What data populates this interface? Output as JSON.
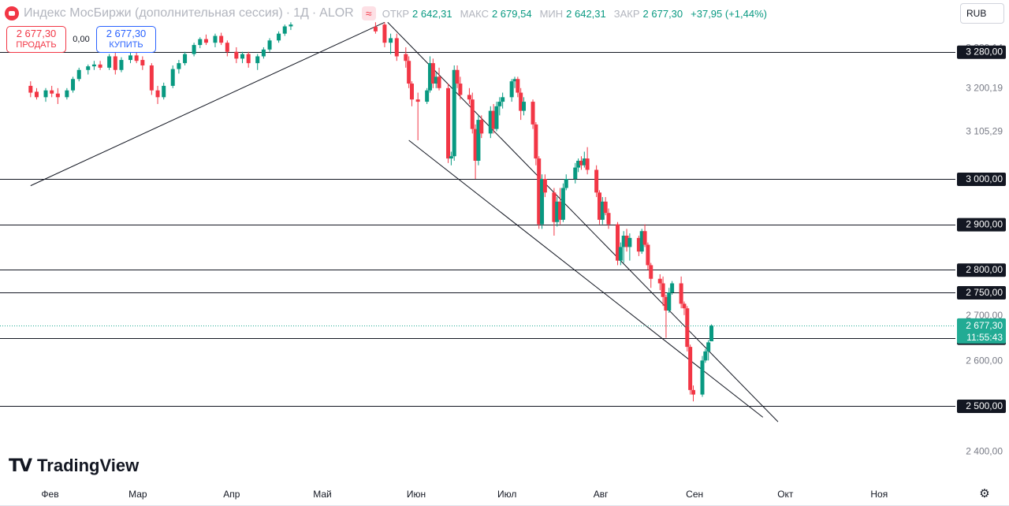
{
  "header": {
    "title": "Индекс МосБиржи (дополнительная сессия)",
    "interval": "1Д",
    "broker": "ALOR",
    "open_label": "ОТКР",
    "open": "2 642,31",
    "high_label": "МАКС",
    "high": "2 679,54",
    "low_label": "МИН",
    "low": "2 642,31",
    "close_label": "ЗАКР",
    "close": "2 677,30",
    "change": "+37,95 (+1,44%)"
  },
  "trade": {
    "sell_price": "2 677,30",
    "sell_label": "ПРОДАТЬ",
    "spread": "0,00",
    "buy_price": "2 677,30",
    "buy_label": "КУПИТЬ"
  },
  "currency": "RUB",
  "brand": {
    "mark": "TV",
    "name": "TradingView"
  },
  "colors": {
    "up": "#089981",
    "down": "#f23645",
    "line": "#131722",
    "price_tag": "#22ab94"
  },
  "chart_data": {
    "type": "candlestick",
    "y_axis": {
      "ticks": [
        2400,
        2600,
        2700,
        3105.29,
        3200.19,
        3289.14
      ],
      "tick_labels": [
        "2 400,00",
        "2 600,00",
        "2 700,00",
        "3 105,29",
        "3 200,19",
        "3 289,14"
      ]
    },
    "x_axis": {
      "labels": [
        "Фев",
        "Мар",
        "Апр",
        "Май",
        "Июн",
        "Июл",
        "Авг",
        "Сен",
        "Окт",
        "Ноя"
      ]
    },
    "horizontal_levels": [
      3280,
      3000,
      2900,
      2800,
      2750,
      2650,
      2500
    ],
    "horizontal_level_labels": [
      "3 280,00",
      "3 000,00",
      "2 900,00",
      "2 800,00",
      "2 750,00",
      "2 650,00",
      "2 500,00"
    ],
    "current_price": {
      "value": 2677.3,
      "label": "2 677,30",
      "countdown": "11:55:43"
    },
    "trendlines": [
      {
        "name": "rising-support",
        "from": [
          "2024-01-24",
          2985
        ],
        "to": [
          "2024-05-20",
          3345
        ]
      },
      {
        "name": "channel-upper",
        "from": [
          "2024-05-21",
          3345
        ],
        "to": [
          "2024-09-27",
          2465
        ]
      },
      {
        "name": "channel-lower",
        "from": [
          "2024-05-28",
          3085
        ],
        "to": [
          "2024-09-22",
          2475
        ]
      }
    ],
    "candles": [
      {
        "d": "2024-01-24",
        "o": 3205,
        "h": 3215,
        "l": 3180,
        "c": 3190
      },
      {
        "d": "2024-01-26",
        "o": 3192,
        "h": 3200,
        "l": 3175,
        "c": 3180
      },
      {
        "d": "2024-01-29",
        "o": 3180,
        "h": 3200,
        "l": 3170,
        "c": 3195
      },
      {
        "d": "2024-01-31",
        "o": 3195,
        "h": 3205,
        "l": 3180,
        "c": 3188
      },
      {
        "d": "2024-02-02",
        "o": 3188,
        "h": 3200,
        "l": 3165,
        "c": 3180
      },
      {
        "d": "2024-02-05",
        "o": 3180,
        "h": 3200,
        "l": 3175,
        "c": 3195
      },
      {
        "d": "2024-02-07",
        "o": 3195,
        "h": 3225,
        "l": 3190,
        "c": 3220
      },
      {
        "d": "2024-02-09",
        "o": 3220,
        "h": 3245,
        "l": 3215,
        "c": 3240
      },
      {
        "d": "2024-02-12",
        "o": 3240,
        "h": 3252,
        "l": 3230,
        "c": 3248
      },
      {
        "d": "2024-02-14",
        "o": 3248,
        "h": 3260,
        "l": 3240,
        "c": 3252
      },
      {
        "d": "2024-02-16",
        "o": 3252,
        "h": 3260,
        "l": 3240,
        "c": 3245
      },
      {
        "d": "2024-02-19",
        "o": 3245,
        "h": 3275,
        "l": 3240,
        "c": 3270
      },
      {
        "d": "2024-02-21",
        "o": 3270,
        "h": 3280,
        "l": 3230,
        "c": 3240
      },
      {
        "d": "2024-02-23",
        "o": 3240,
        "h": 3268,
        "l": 3235,
        "c": 3262
      },
      {
        "d": "2024-02-26",
        "o": 3262,
        "h": 3278,
        "l": 3255,
        "c": 3272
      },
      {
        "d": "2024-02-28",
        "o": 3272,
        "h": 3282,
        "l": 3255,
        "c": 3260
      },
      {
        "d": "2024-03-01",
        "o": 3262,
        "h": 3270,
        "l": 3240,
        "c": 3250
      },
      {
        "d": "2024-03-04",
        "o": 3250,
        "h": 3255,
        "l": 3185,
        "c": 3195
      },
      {
        "d": "2024-03-06",
        "o": 3195,
        "h": 3205,
        "l": 3165,
        "c": 3180
      },
      {
        "d": "2024-03-08",
        "o": 3180,
        "h": 3212,
        "l": 3175,
        "c": 3205
      },
      {
        "d": "2024-03-11",
        "o": 3205,
        "h": 3250,
        "l": 3200,
        "c": 3242
      },
      {
        "d": "2024-03-13",
        "o": 3242,
        "h": 3262,
        "l": 3232,
        "c": 3255
      },
      {
        "d": "2024-03-15",
        "o": 3255,
        "h": 3280,
        "l": 3250,
        "c": 3275
      },
      {
        "d": "2024-03-18",
        "o": 3275,
        "h": 3300,
        "l": 3270,
        "c": 3295
      },
      {
        "d": "2024-03-20",
        "o": 3295,
        "h": 3312,
        "l": 3288,
        "c": 3308
      },
      {
        "d": "2024-03-22",
        "o": 3308,
        "h": 3318,
        "l": 3295,
        "c": 3300
      },
      {
        "d": "2024-03-25",
        "o": 3300,
        "h": 3320,
        "l": 3290,
        "c": 3315
      },
      {
        "d": "2024-03-27",
        "o": 3315,
        "h": 3322,
        "l": 3295,
        "c": 3300
      },
      {
        "d": "2024-03-29",
        "o": 3300,
        "h": 3305,
        "l": 3270,
        "c": 3280
      },
      {
        "d": "2024-04-01",
        "o": 3280,
        "h": 3290,
        "l": 3255,
        "c": 3265
      },
      {
        "d": "2024-04-03",
        "o": 3265,
        "h": 3280,
        "l": 3255,
        "c": 3275
      },
      {
        "d": "2024-04-05",
        "o": 3275,
        "h": 3280,
        "l": 3245,
        "c": 3255
      },
      {
        "d": "2024-04-08",
        "o": 3255,
        "h": 3275,
        "l": 3240,
        "c": 3270
      },
      {
        "d": "2024-04-10",
        "o": 3270,
        "h": 3290,
        "l": 3265,
        "c": 3285
      },
      {
        "d": "2024-04-12",
        "o": 3285,
        "h": 3310,
        "l": 3280,
        "c": 3305
      },
      {
        "d": "2024-04-15",
        "o": 3305,
        "h": 3325,
        "l": 3300,
        "c": 3320
      },
      {
        "d": "2024-04-17",
        "o": 3320,
        "h": 3340,
        "l": 3315,
        "c": 3336
      },
      {
        "d": "2024-04-19",
        "o": 3336,
        "h": 3345,
        "l": 3328,
        "c": 3340
      },
      {
        "d": "2024-05-17",
        "o": 3335,
        "h": 3345,
        "l": 3320,
        "c": 3325
      },
      {
        "d": "2024-05-20",
        "o": 3340,
        "h": 3345,
        "l": 3290,
        "c": 3300
      },
      {
        "d": "2024-05-22",
        "o": 3300,
        "h": 3320,
        "l": 3275,
        "c": 3310
      },
      {
        "d": "2024-05-24",
        "o": 3310,
        "h": 3320,
        "l": 3260,
        "c": 3270
      },
      {
        "d": "2024-05-27",
        "o": 3275,
        "h": 3290,
        "l": 3245,
        "c": 3260
      },
      {
        "d": "2024-05-28",
        "o": 3260,
        "h": 3270,
        "l": 3200,
        "c": 3210
      },
      {
        "d": "2024-05-29",
        "o": 3210,
        "h": 3215,
        "l": 3160,
        "c": 3175
      },
      {
        "d": "2024-05-31",
        "o": 3175,
        "h": 3190,
        "l": 3085,
        "c": 3170
      },
      {
        "d": "2024-06-03",
        "o": 3170,
        "h": 3200,
        "l": 3165,
        "c": 3195
      },
      {
        "d": "2024-06-04",
        "o": 3195,
        "h": 3270,
        "l": 3190,
        "c": 3255
      },
      {
        "d": "2024-06-05",
        "o": 3255,
        "h": 3265,
        "l": 3200,
        "c": 3210
      },
      {
        "d": "2024-06-06",
        "o": 3210,
        "h": 3235,
        "l": 3200,
        "c": 3225
      },
      {
        "d": "2024-06-07",
        "o": 3225,
        "h": 3245,
        "l": 3195,
        "c": 3200
      },
      {
        "d": "2024-06-10",
        "o": 3200,
        "h": 3210,
        "l": 3035,
        "c": 3045
      },
      {
        "d": "2024-06-11",
        "o": 3045,
        "h": 3060,
        "l": 3030,
        "c": 3050
      },
      {
        "d": "2024-06-12",
        "o": 3050,
        "h": 3250,
        "l": 3040,
        "c": 3240
      },
      {
        "d": "2024-06-13",
        "o": 3240,
        "h": 3250,
        "l": 3200,
        "c": 3210
      },
      {
        "d": "2024-06-14",
        "o": 3210,
        "h": 3225,
        "l": 3175,
        "c": 3185
      },
      {
        "d": "2024-06-17",
        "o": 3185,
        "h": 3200,
        "l": 3165,
        "c": 3175
      },
      {
        "d": "2024-06-18",
        "o": 3175,
        "h": 3190,
        "l": 3100,
        "c": 3110
      },
      {
        "d": "2024-06-19",
        "o": 3110,
        "h": 3120,
        "l": 3000,
        "c": 3040
      },
      {
        "d": "2024-06-20",
        "o": 3040,
        "h": 3140,
        "l": 3030,
        "c": 3130
      },
      {
        "d": "2024-06-21",
        "o": 3130,
        "h": 3140,
        "l": 3090,
        "c": 3100
      },
      {
        "d": "2024-06-24",
        "o": 3100,
        "h": 3160,
        "l": 3090,
        "c": 3150
      },
      {
        "d": "2024-06-25",
        "o": 3150,
        "h": 3165,
        "l": 3100,
        "c": 3110
      },
      {
        "d": "2024-06-26",
        "o": 3110,
        "h": 3170,
        "l": 3105,
        "c": 3160
      },
      {
        "d": "2024-06-27",
        "o": 3160,
        "h": 3180,
        "l": 3140,
        "c": 3170
      },
      {
        "d": "2024-06-28",
        "o": 3170,
        "h": 3190,
        "l": 3155,
        "c": 3180
      },
      {
        "d": "2024-07-01",
        "o": 3180,
        "h": 3220,
        "l": 3170,
        "c": 3215
      },
      {
        "d": "2024-07-02",
        "o": 3215,
        "h": 3225,
        "l": 3200,
        "c": 3220
      },
      {
        "d": "2024-07-03",
        "o": 3220,
        "h": 3225,
        "l": 3180,
        "c": 3190
      },
      {
        "d": "2024-07-04",
        "o": 3190,
        "h": 3200,
        "l": 3130,
        "c": 3150
      },
      {
        "d": "2024-07-05",
        "o": 3150,
        "h": 3180,
        "l": 3140,
        "c": 3170
      },
      {
        "d": "2024-07-08",
        "o": 3170,
        "h": 3175,
        "l": 3110,
        "c": 3120
      },
      {
        "d": "2024-07-09",
        "o": 3120,
        "h": 3125,
        "l": 3030,
        "c": 3045
      },
      {
        "d": "2024-07-10",
        "o": 3045,
        "h": 3050,
        "l": 2890,
        "c": 2900
      },
      {
        "d": "2024-07-11",
        "o": 2900,
        "h": 3010,
        "l": 2890,
        "c": 3000
      },
      {
        "d": "2024-07-12",
        "o": 3000,
        "h": 3010,
        "l": 2960,
        "c": 2970
      },
      {
        "d": "2024-07-15",
        "o": 2970,
        "h": 2980,
        "l": 2875,
        "c": 2905
      },
      {
        "d": "2024-07-16",
        "o": 2905,
        "h": 2960,
        "l": 2895,
        "c": 2950
      },
      {
        "d": "2024-07-17",
        "o": 2950,
        "h": 2980,
        "l": 2900,
        "c": 2910
      },
      {
        "d": "2024-07-18",
        "o": 2910,
        "h": 2990,
        "l": 2905,
        "c": 2980
      },
      {
        "d": "2024-07-19",
        "o": 2980,
        "h": 3010,
        "l": 2975,
        "c": 3000
      },
      {
        "d": "2024-07-22",
        "o": 3000,
        "h": 3035,
        "l": 2990,
        "c": 3025
      },
      {
        "d": "2024-07-23",
        "o": 3025,
        "h": 3045,
        "l": 3015,
        "c": 3040
      },
      {
        "d": "2024-07-24",
        "o": 3040,
        "h": 3050,
        "l": 3020,
        "c": 3030
      },
      {
        "d": "2024-07-25",
        "o": 3030,
        "h": 3060,
        "l": 3025,
        "c": 3045
      },
      {
        "d": "2024-07-26",
        "o": 3045,
        "h": 3070,
        "l": 3010,
        "c": 3020
      },
      {
        "d": "2024-07-29",
        "o": 3020,
        "h": 3030,
        "l": 2960,
        "c": 2970
      },
      {
        "d": "2024-07-30",
        "o": 2970,
        "h": 2975,
        "l": 2900,
        "c": 2910
      },
      {
        "d": "2024-07-31",
        "o": 2910,
        "h": 2960,
        "l": 2900,
        "c": 2950
      },
      {
        "d": "2024-08-01",
        "o": 2950,
        "h": 2960,
        "l": 2920,
        "c": 2925
      },
      {
        "d": "2024-08-02",
        "o": 2925,
        "h": 2935,
        "l": 2890,
        "c": 2900
      },
      {
        "d": "2024-08-05",
        "o": 2900,
        "h": 2905,
        "l": 2810,
        "c": 2820
      },
      {
        "d": "2024-08-06",
        "o": 2820,
        "h": 2860,
        "l": 2810,
        "c": 2850
      },
      {
        "d": "2024-08-07",
        "o": 2850,
        "h": 2885,
        "l": 2815,
        "c": 2875
      },
      {
        "d": "2024-08-08",
        "o": 2875,
        "h": 2890,
        "l": 2840,
        "c": 2850
      },
      {
        "d": "2024-08-09",
        "o": 2850,
        "h": 2880,
        "l": 2820,
        "c": 2870
      },
      {
        "d": "2024-08-12",
        "o": 2870,
        "h": 2875,
        "l": 2830,
        "c": 2840
      },
      {
        "d": "2024-08-13",
        "o": 2840,
        "h": 2890,
        "l": 2835,
        "c": 2885
      },
      {
        "d": "2024-08-14",
        "o": 2885,
        "h": 2900,
        "l": 2850,
        "c": 2855
      },
      {
        "d": "2024-08-15",
        "o": 2855,
        "h": 2860,
        "l": 2800,
        "c": 2810
      },
      {
        "d": "2024-08-16",
        "o": 2810,
        "h": 2815,
        "l": 2760,
        "c": 2780
      },
      {
        "d": "2024-08-19",
        "o": 2780,
        "h": 2790,
        "l": 2755,
        "c": 2770
      },
      {
        "d": "2024-08-20",
        "o": 2770,
        "h": 2785,
        "l": 2720,
        "c": 2740
      },
      {
        "d": "2024-08-21",
        "o": 2740,
        "h": 2745,
        "l": 2650,
        "c": 2710
      },
      {
        "d": "2024-08-22",
        "o": 2710,
        "h": 2760,
        "l": 2705,
        "c": 2750
      },
      {
        "d": "2024-08-23",
        "o": 2750,
        "h": 2775,
        "l": 2745,
        "c": 2770
      },
      {
        "d": "2024-08-26",
        "o": 2770,
        "h": 2785,
        "l": 2715,
        "c": 2725
      },
      {
        "d": "2024-08-27",
        "o": 2725,
        "h": 2730,
        "l": 2700,
        "c": 2715
      },
      {
        "d": "2024-08-28",
        "o": 2715,
        "h": 2720,
        "l": 2620,
        "c": 2630
      },
      {
        "d": "2024-08-29",
        "o": 2630,
        "h": 2635,
        "l": 2525,
        "c": 2535
      },
      {
        "d": "2024-08-30",
        "o": 2535,
        "h": 2545,
        "l": 2510,
        "c": 2525
      },
      {
        "d": "2024-09-02",
        "o": 2525,
        "h": 2610,
        "l": 2520,
        "c": 2600
      },
      {
        "d": "2024-09-03",
        "o": 2600,
        "h": 2625,
        "l": 2595,
        "c": 2620
      },
      {
        "d": "2024-09-04",
        "o": 2620,
        "h": 2645,
        "l": 2600,
        "c": 2640
      },
      {
        "d": "2024-09-05",
        "o": 2642.31,
        "h": 2679.54,
        "l": 2642.31,
        "c": 2677.3
      }
    ]
  }
}
